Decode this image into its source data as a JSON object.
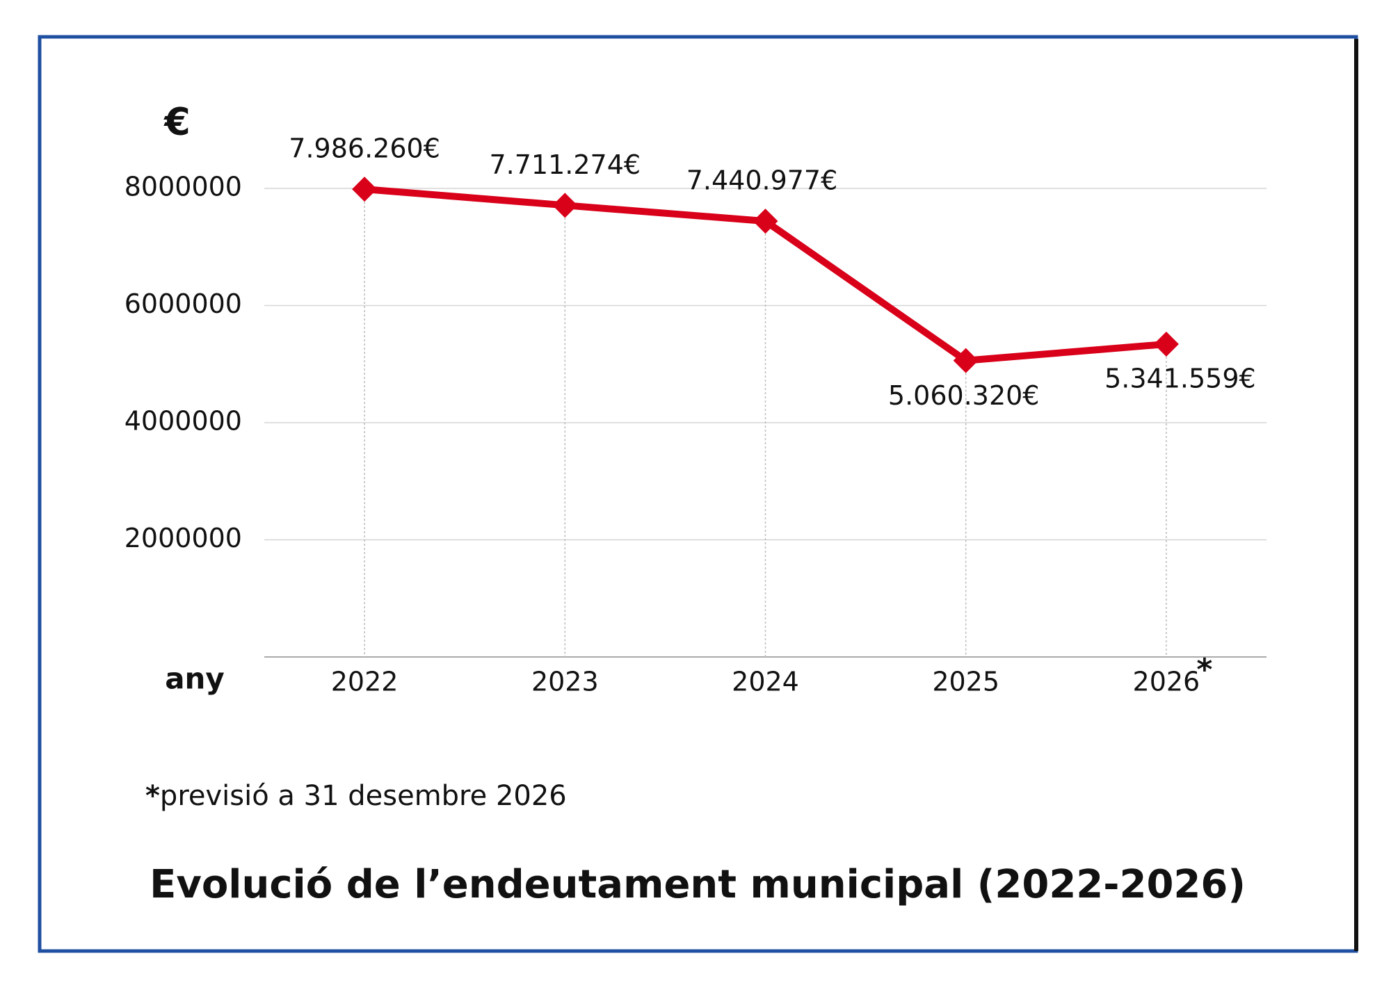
{
  "chart_data": {
    "type": "line",
    "title": "Evolució de l’endeutament municipal (2022-2026)",
    "y_label": "€",
    "x_label": "any",
    "footnote_marker": "*",
    "footnote": "previsió a 31 desembre 2026",
    "categories": [
      "2022",
      "2023",
      "2024",
      "2025",
      "2026"
    ],
    "series": [
      {
        "name": "endeutament",
        "color": "#d90019",
        "values": [
          7986260,
          7711274,
          7440977,
          5060320,
          5341559
        ],
        "value_labels": [
          "7.986.260€",
          "7.711.274€",
          "7.440.977€",
          "5.060.320€",
          "5.341.559€"
        ]
      }
    ],
    "ylim": [
      0,
      8000000
    ],
    "yticks": [
      2000000,
      4000000,
      6000000,
      8000000
    ],
    "grid": true
  }
}
